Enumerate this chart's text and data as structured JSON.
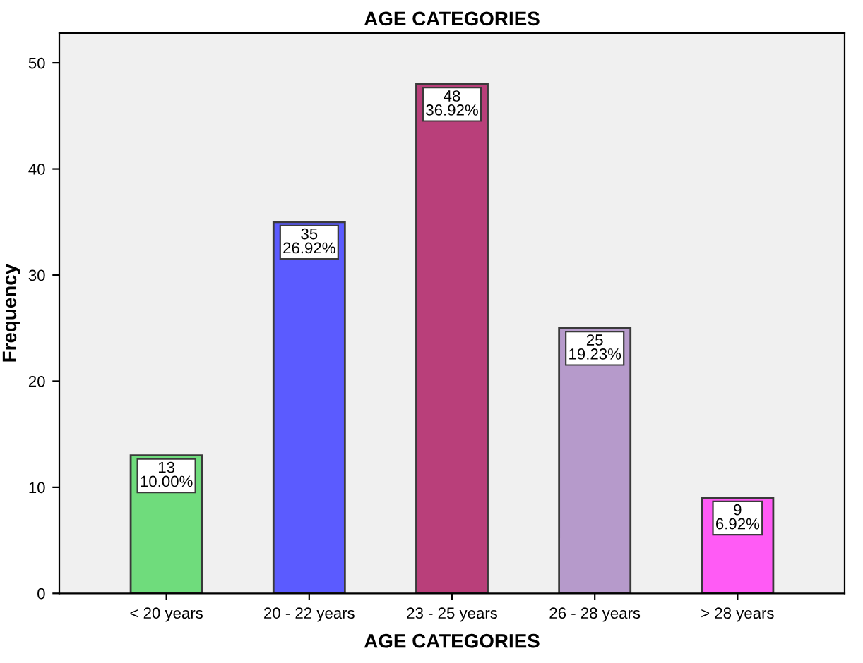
{
  "chart_data": {
    "type": "bar",
    "title": "AGE CATEGORIES",
    "xlabel": "AGE CATEGORIES",
    "ylabel": "Frequency",
    "categories": [
      "< 20 years",
      "20 - 22 years",
      "23 - 25 years",
      "26 - 28 years",
      "> 28 years"
    ],
    "values": [
      13,
      35,
      48,
      25,
      9
    ],
    "colors": [
      "#6fdc7c",
      "#5b5bff",
      "#b93f7a",
      "#b69acb",
      "#ff5bf5"
    ],
    "value_labels": [
      "13\n10.00%",
      "35\n26.92%",
      "48\n36.92%",
      "25\n19.23%",
      "9\n6.92%"
    ],
    "ylim": [
      0,
      52.8
    ],
    "yticks": [
      0,
      10,
      20,
      30,
      40,
      50
    ],
    "grid": false,
    "legend": false
  }
}
